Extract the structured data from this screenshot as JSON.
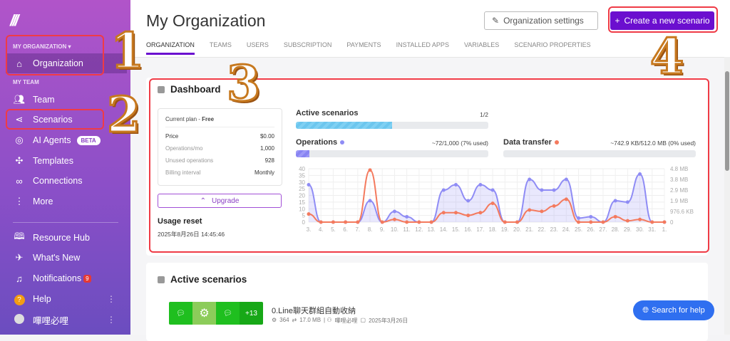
{
  "sidebar": {
    "org_section": "MY ORGANIZATION ▾",
    "team_section": "MY TEAM",
    "items": [
      {
        "label": "Organization",
        "icon": "home-icon"
      },
      {
        "label": "Team",
        "icon": "team-icon"
      },
      {
        "label": "Scenarios",
        "icon": "share-icon"
      },
      {
        "label": "AI Agents",
        "icon": "ai-agent-icon",
        "badge": "BETA"
      },
      {
        "label": "Templates",
        "icon": "puzzle-icon"
      },
      {
        "label": "Connections",
        "icon": "link-icon"
      },
      {
        "label": "More",
        "icon": "more-icon"
      }
    ],
    "bottom": [
      {
        "label": "Resource Hub",
        "icon": "book-icon"
      },
      {
        "label": "What's New",
        "icon": "rocket-icon"
      },
      {
        "label": "Notifications",
        "icon": "bell-icon",
        "badge": "9"
      },
      {
        "label": "Help",
        "icon": "help-icon"
      },
      {
        "label": "嗶哩必哩",
        "icon": "avatar"
      }
    ]
  },
  "header": {
    "title": "My Organization",
    "settings_label": "Organization settings",
    "create_label": "Create a new scenario"
  },
  "tabs": [
    "ORGANIZATION",
    "TEAMS",
    "USERS",
    "SUBSCRIPTION",
    "PAYMENTS",
    "INSTALLED APPS",
    "VARIABLES",
    "SCENARIO PROPERTIES"
  ],
  "dashboard": {
    "title": "Dashboard",
    "plan": {
      "label": "Current plan - ",
      "name": "Free",
      "rows": [
        [
          "Price",
          "$0.00"
        ],
        [
          "Operations/mo",
          "1,000"
        ],
        [
          "Unused operations",
          "928"
        ],
        [
          "Billing interval",
          "Monthly"
        ]
      ]
    },
    "upgrade_label": "Upgrade",
    "usage_reset_label": "Usage reset",
    "usage_reset_value": "2025年8月26日 14:45:46",
    "active_scenarios": {
      "label": "Active scenarios",
      "value": "1/2",
      "fraction": 0.5
    },
    "operations": {
      "label": "Operations",
      "value": "~72/1,000 (7% used)",
      "fraction": 0.07,
      "color": "#8f8cf5"
    },
    "data_transfer": {
      "label": "Data transfer",
      "value": "~742.9 KB/512.0 MB (0% used)",
      "fraction": 0.0,
      "color": "#f47a5e"
    }
  },
  "chart_data": {
    "type": "line",
    "categories": [
      "3.",
      "4.",
      "5.",
      "6.",
      "7.",
      "8.",
      "9.",
      "10.",
      "11.",
      "12.",
      "13.",
      "14.",
      "15.",
      "16.",
      "17.",
      "18.",
      "19.",
      "20.",
      "21.",
      "22.",
      "23.",
      "24.",
      "25.",
      "26.",
      "27.",
      "28.",
      "29.",
      "30.",
      "31.",
      "1."
    ],
    "left_ticks": [
      "0",
      "5",
      "10",
      "15",
      "20",
      "25",
      "30",
      "35",
      "40"
    ],
    "right_ticks": [
      "0",
      "976.6 KB",
      "1.9 MB",
      "2.9 MB",
      "3.8 MB",
      "4.8 MB"
    ],
    "ylim_left": [
      0,
      40
    ],
    "ylim_right_mb": [
      0,
      4.77
    ],
    "grid": true,
    "series": [
      {
        "name": "Operations",
        "axis": "left",
        "color": "#8f8cf5",
        "area": true,
        "values": [
          28,
          0,
          0,
          0,
          0,
          16,
          0,
          8,
          4,
          0,
          0,
          24,
          28,
          16,
          28,
          24,
          0,
          0,
          32,
          24,
          24,
          32,
          3,
          4,
          0,
          16,
          15,
          36,
          0,
          0
        ]
      },
      {
        "name": "Data transfer",
        "axis": "right",
        "unit": "MB",
        "color": "#f47a5e",
        "values": [
          0.72,
          0,
          0,
          0,
          0,
          4.65,
          0,
          0.24,
          0,
          0,
          0,
          0.84,
          0.84,
          0.6,
          0.84,
          1.68,
          0,
          0,
          1.08,
          0.96,
          1.44,
          2.04,
          0,
          0,
          0,
          0.48,
          0.12,
          0.24,
          0,
          0
        ]
      }
    ]
  },
  "active_section": {
    "title": "Active scenarios",
    "scenario": {
      "name": "0.Line聊天群組自動收納",
      "apps": [
        "LINE",
        "gear",
        "LINE"
      ],
      "more": "+13",
      "ops": "364",
      "transfer": "17.0 MB",
      "owner": "嗶哩必哩",
      "date": "2025年3月26日"
    }
  },
  "help_label": "Search for help",
  "annotations": [
    "1",
    "2",
    "3",
    "4"
  ]
}
